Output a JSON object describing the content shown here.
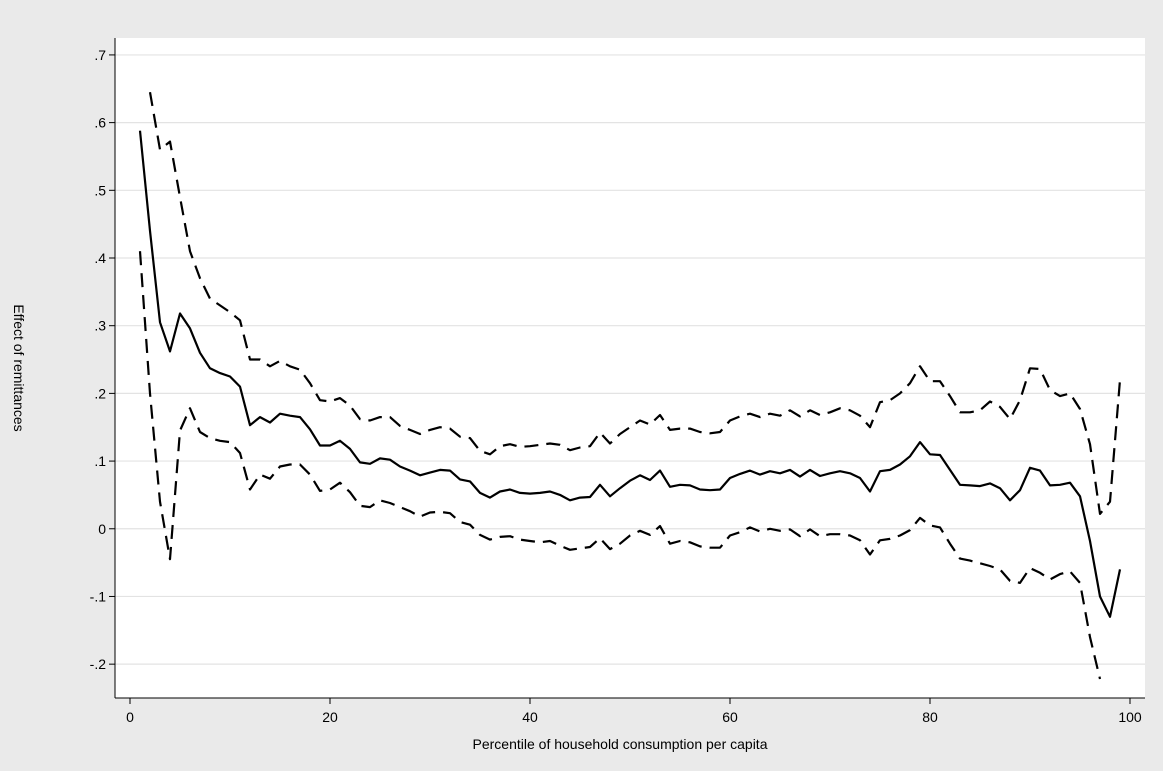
{
  "colors": {
    "outer_background": "#eaeaea",
    "plot_background": "#ffffff",
    "grid": "#e3e3e3",
    "line": "#000000",
    "text": "#000000"
  },
  "chart_data": {
    "type": "line",
    "title": "",
    "xlabel": "Percentile of household consumption per capita",
    "ylabel": "Effect of remittances",
    "xlim": [
      -1.5,
      101.5
    ],
    "ylim": [
      -0.25,
      0.725
    ],
    "xticks": [
      0,
      20,
      40,
      60,
      80,
      100
    ],
    "xtick_labels": [
      "0",
      "20",
      "40",
      "60",
      "80",
      "100"
    ],
    "yticks": [
      -0.2,
      -0.1,
      0,
      0.1,
      0.2,
      0.3,
      0.4,
      0.5,
      0.6,
      0.7
    ],
    "ytick_labels": [
      "-.2",
      "-.1",
      "0",
      ".1",
      ".2",
      ".3",
      ".4",
      ".5",
      ".6",
      ".7"
    ],
    "grid": true,
    "legend": "none",
    "series": [
      {
        "style": "solid",
        "x_start": 1,
        "x_step": 1,
        "values": [
          0.588,
          0.44,
          0.305,
          0.262,
          0.318,
          0.296,
          0.26,
          0.237,
          0.23,
          0.225,
          0.21,
          0.153,
          0.165,
          0.157,
          0.17,
          0.167,
          0.165,
          0.147,
          0.123,
          0.123,
          0.13,
          0.118,
          0.098,
          0.096,
          0.104,
          0.102,
          0.092,
          0.086,
          0.079,
          0.083,
          0.087,
          0.086,
          0.073,
          0.07,
          0.053,
          0.046,
          0.055,
          0.058,
          0.053,
          0.052,
          0.053,
          0.055,
          0.05,
          0.042,
          0.046,
          0.047,
          0.065,
          0.048,
          0.06,
          0.071,
          0.079,
          0.072,
          0.086,
          0.062,
          0.065,
          0.064,
          0.058,
          0.057,
          0.058,
          0.075,
          0.081,
          0.086,
          0.08,
          0.085,
          0.082,
          0.087,
          0.077,
          0.087,
          0.078,
          0.082,
          0.085,
          0.082,
          0.075,
          0.055,
          0.085,
          0.087,
          0.095,
          0.107,
          0.128,
          0.11,
          0.109,
          0.087,
          0.065,
          0.064,
          0.063,
          0.067,
          0.06,
          0.042,
          0.057,
          0.09,
          0.086,
          0.064,
          0.065,
          0.068,
          0.048,
          -0.018,
          -0.1,
          -0.13,
          -0.06
        ]
      },
      {
        "style": "dashed",
        "x_start": 1,
        "x_step": 1,
        "values": [
          0.41,
          0.2,
          0.04,
          -0.045,
          0.145,
          0.178,
          0.143,
          0.134,
          0.13,
          0.128,
          0.112,
          0.058,
          0.08,
          0.074,
          0.092,
          0.095,
          0.095,
          0.08,
          0.056,
          0.058,
          0.068,
          0.054,
          0.034,
          0.032,
          0.042,
          0.038,
          0.032,
          0.026,
          0.018,
          0.024,
          0.025,
          0.023,
          0.01,
          0.006,
          -0.009,
          -0.016,
          -0.012,
          -0.011,
          -0.016,
          -0.018,
          -0.02,
          -0.018,
          -0.025,
          -0.031,
          -0.029,
          -0.027,
          -0.014,
          -0.03,
          -0.022,
          -0.01,
          -0.003,
          -0.009,
          0.004,
          -0.022,
          -0.018,
          -0.02,
          -0.026,
          -0.028,
          -0.028,
          -0.01,
          -0.005,
          0.002,
          -0.004,
          0.0,
          -0.003,
          -0.001,
          -0.011,
          -0.001,
          -0.011,
          -0.008,
          -0.008,
          -0.01,
          -0.017,
          -0.038,
          -0.017,
          -0.015,
          -0.01,
          -0.002,
          0.016,
          0.005,
          0.002,
          -0.022,
          -0.044,
          -0.047,
          -0.051,
          -0.055,
          -0.06,
          -0.077,
          -0.08,
          -0.058,
          -0.065,
          -0.075,
          -0.067,
          -0.063,
          -0.08,
          -0.16,
          -0.222,
          null,
          null
        ]
      },
      {
        "style": "dashed",
        "x_start": 1,
        "x_step": 1,
        "values": [
          null,
          0.645,
          0.56,
          0.572,
          0.49,
          0.41,
          0.37,
          0.34,
          0.33,
          0.32,
          0.308,
          0.25,
          0.25,
          0.24,
          0.248,
          0.24,
          0.235,
          0.215,
          0.19,
          0.188,
          0.193,
          0.182,
          0.162,
          0.16,
          0.165,
          0.165,
          0.152,
          0.146,
          0.14,
          0.146,
          0.15,
          0.148,
          0.136,
          0.134,
          0.115,
          0.11,
          0.122,
          0.125,
          0.121,
          0.122,
          0.124,
          0.126,
          0.124,
          0.116,
          0.12,
          0.122,
          0.142,
          0.126,
          0.14,
          0.15,
          0.16,
          0.154,
          0.168,
          0.146,
          0.148,
          0.148,
          0.143,
          0.141,
          0.143,
          0.16,
          0.166,
          0.17,
          0.165,
          0.17,
          0.167,
          0.175,
          0.166,
          0.175,
          0.168,
          0.172,
          0.178,
          0.175,
          0.167,
          0.15,
          0.187,
          0.19,
          0.2,
          0.215,
          0.24,
          0.218,
          0.218,
          0.196,
          0.172,
          0.172,
          0.175,
          0.188,
          0.18,
          0.162,
          0.19,
          0.237,
          0.236,
          0.205,
          0.196,
          0.2,
          0.177,
          0.125,
          0.022,
          0.04,
          0.22
        ]
      }
    ]
  }
}
